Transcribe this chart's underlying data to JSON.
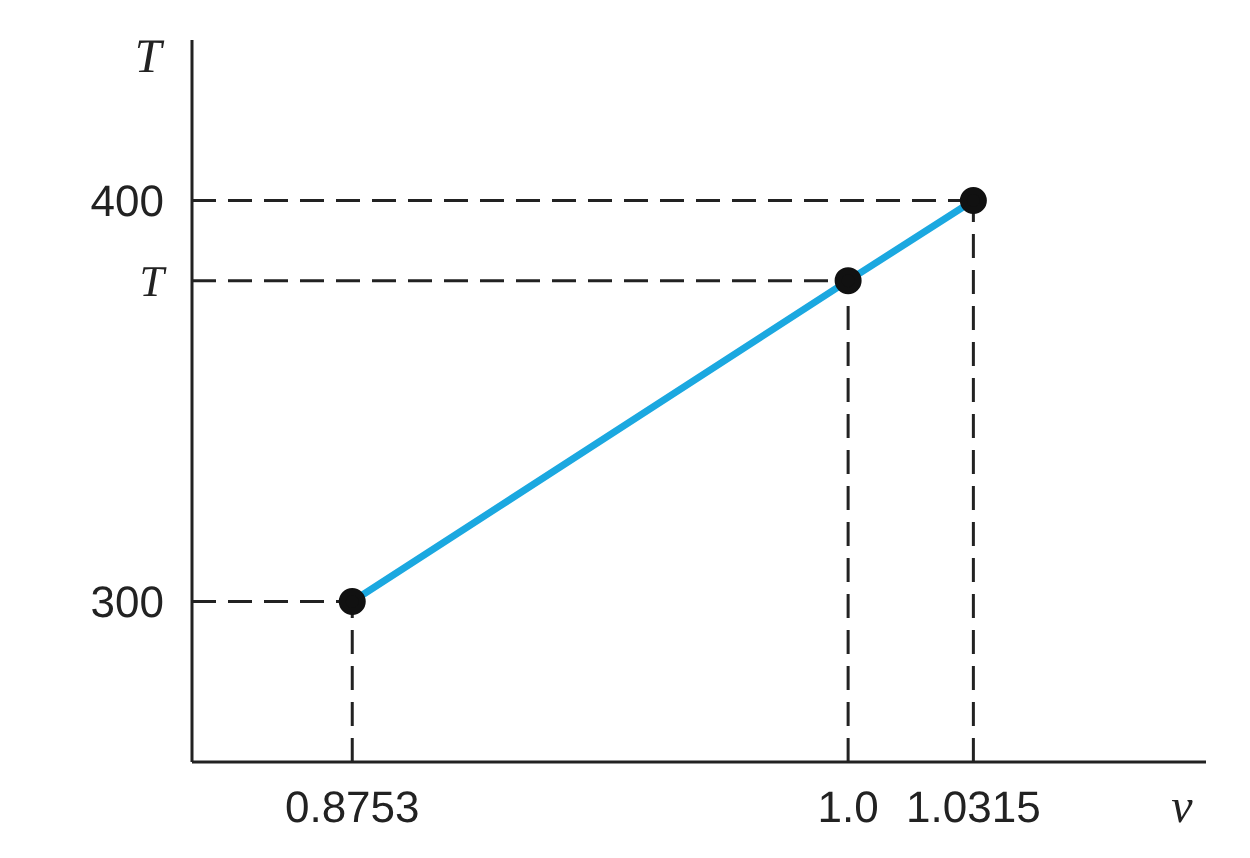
{
  "chart_data": {
    "type": "line",
    "xlabel": "v",
    "ylabel": "T",
    "x": [
      0.8753,
      1.0,
      1.0315
    ],
    "series": [
      {
        "color": "#1ba8e0",
        "values": [
          300,
          380,
          400
        ]
      }
    ],
    "xlim": [
      0.835,
      1.09
    ],
    "ylim": [
      260,
      440
    ],
    "xticks": [
      0.8753,
      {
        "value": 1.0,
        "label": "1.0"
      },
      1.0315
    ],
    "yticks": [
      300,
      {
        "value": 380,
        "label": "T"
      },
      400
    ],
    "marker": "circle",
    "grid": false,
    "legend": false,
    "ref_lines": [
      {
        "axis": "x",
        "value": 0.8753,
        "line_style": "dashed"
      },
      {
        "axis": "x",
        "value": 1.0,
        "line_style": "dashed"
      },
      {
        "axis": "x",
        "value": 1.0315,
        "line_style": "dashed"
      },
      {
        "axis": "y",
        "value": 300,
        "line_style": "dashed"
      },
      {
        "axis": "y",
        "value": 380,
        "line_style": "dashed"
      },
      {
        "axis": "y",
        "value": 400,
        "line_style": "dashed"
      }
    ]
  }
}
